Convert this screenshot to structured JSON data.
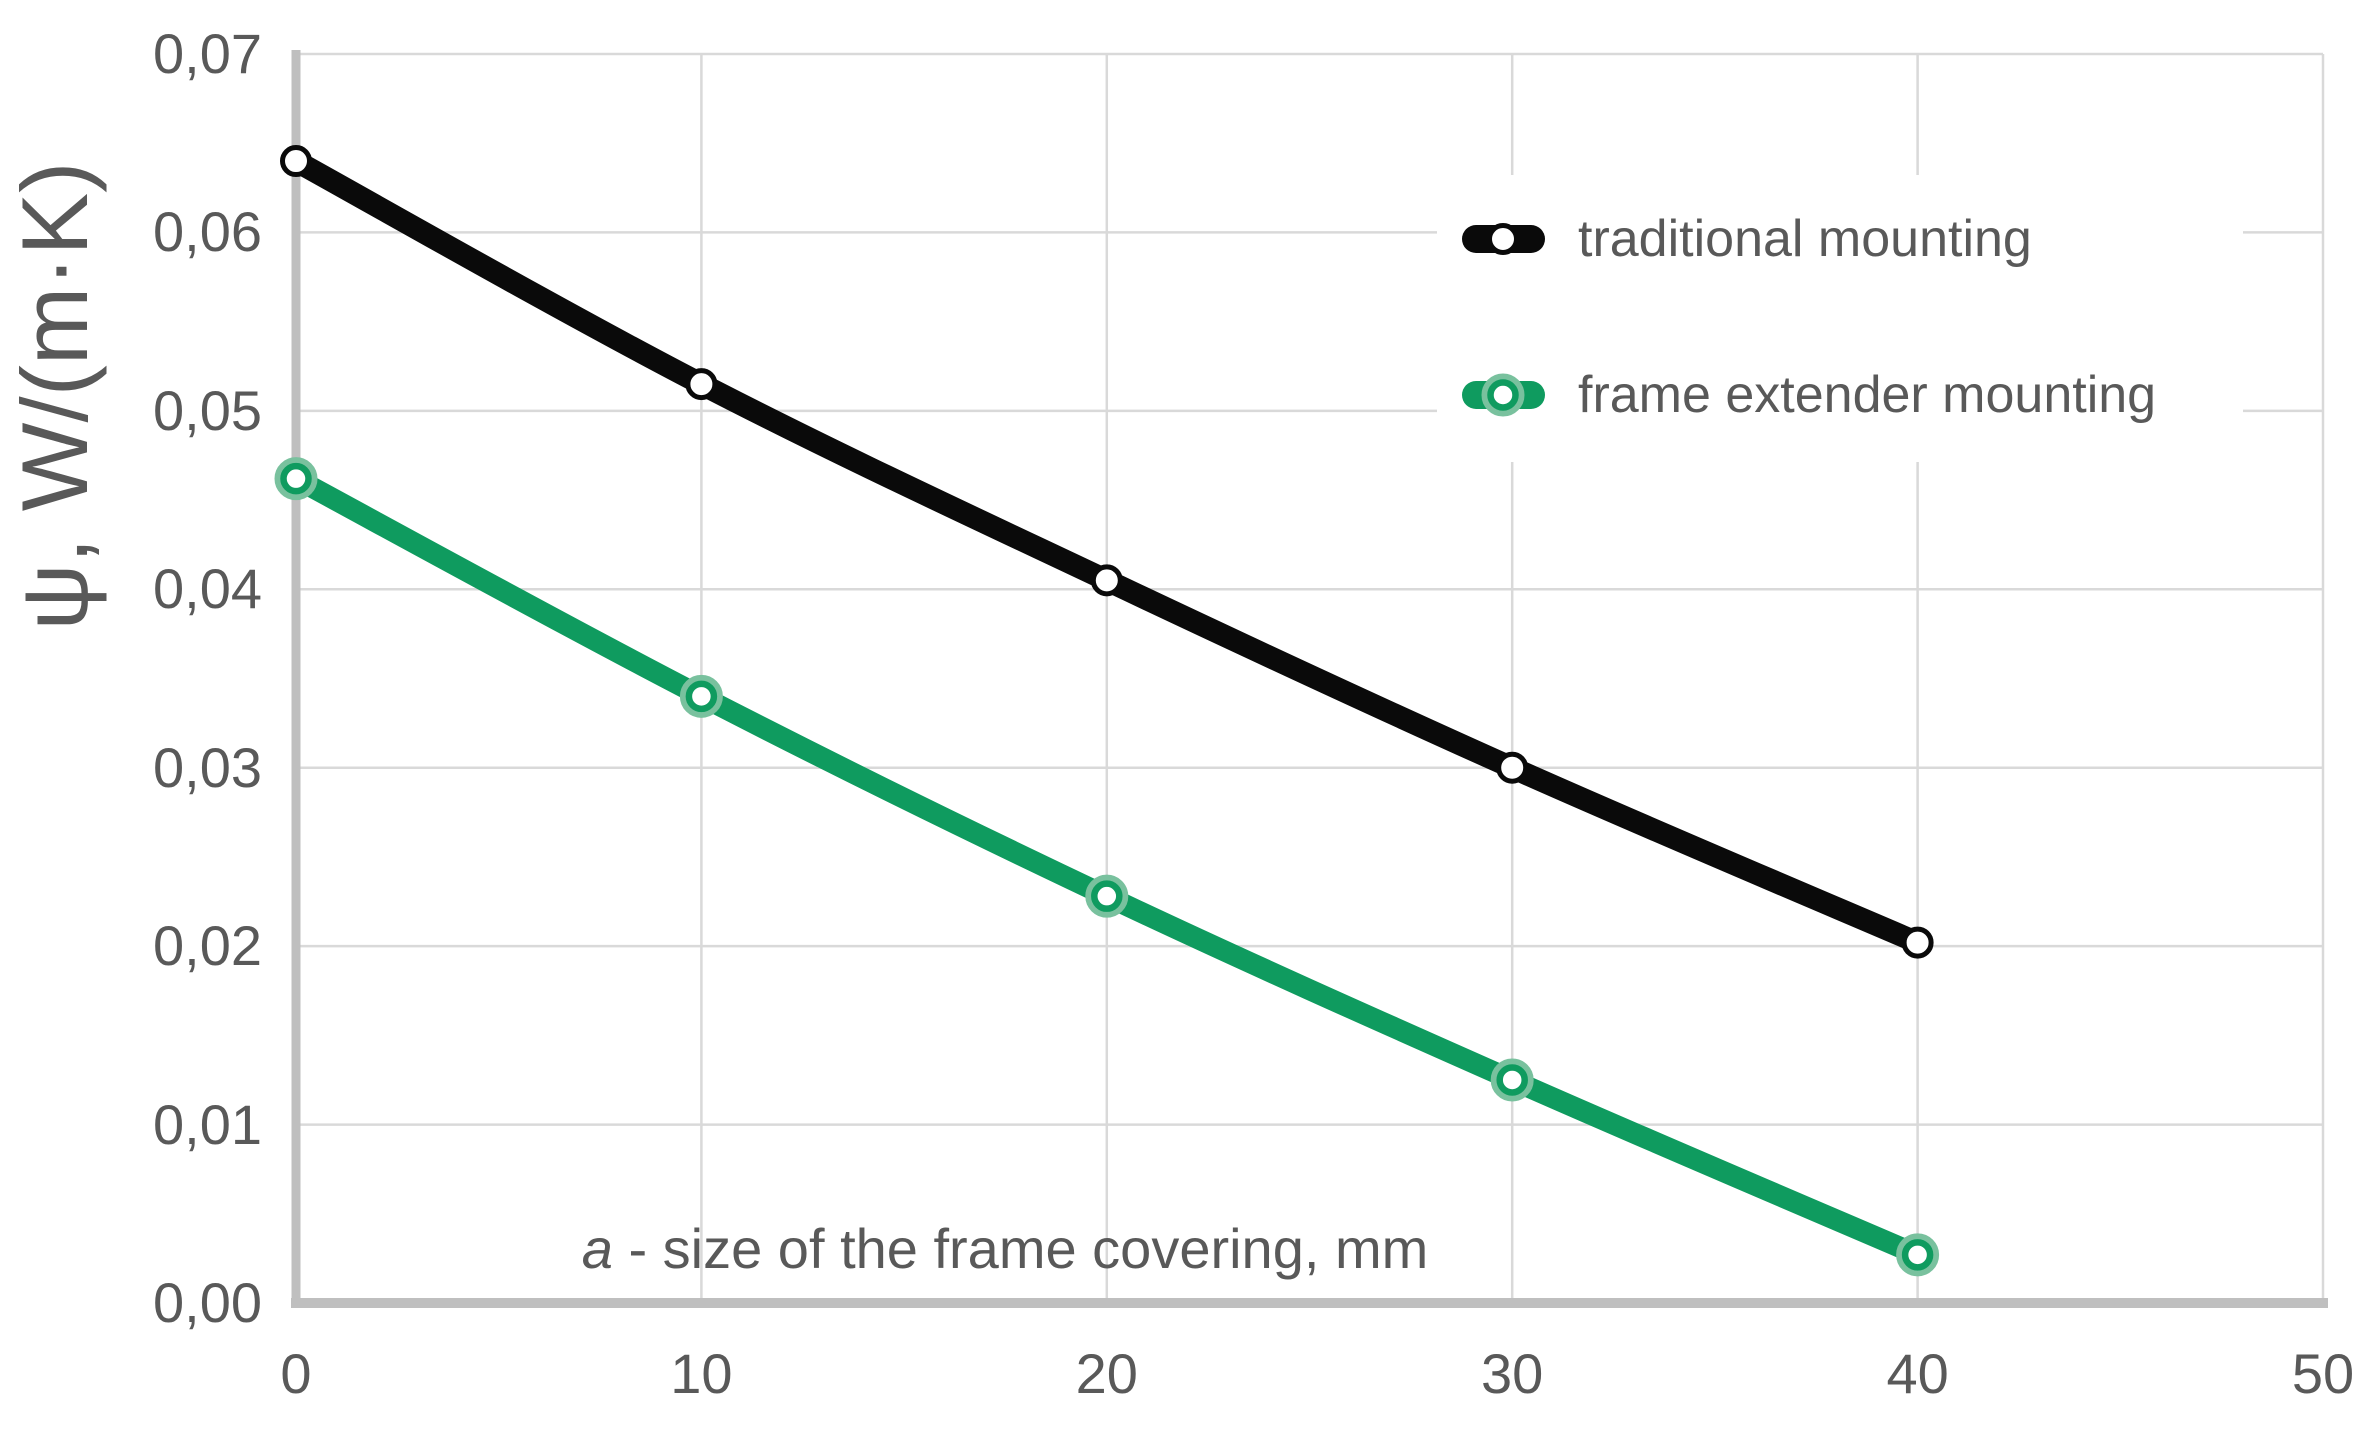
{
  "chart_data": {
    "type": "line",
    "title": "",
    "xlabel": "a - size of the frame covering, mm",
    "xlabel_italic": "a",
    "xlabel_rest": " - size of the frame covering, mm",
    "ylabel": "ψ, W/(m·K)",
    "xlim": [
      0,
      50
    ],
    "ylim": [
      0.0,
      0.07
    ],
    "grid": true,
    "decimal_separator": ",",
    "legend_position": "inside upper right",
    "x": [
      0,
      10,
      20,
      30,
      40
    ],
    "series": [
      {
        "name": "traditional mounting",
        "color": "#0a0a0a",
        "marker": "circle-white-fill",
        "values": [
          0.064,
          0.0515,
          0.0405,
          0.03,
          0.0202
        ]
      },
      {
        "name": "frame extender mounting",
        "color": "#0f9b5f",
        "marker": "circle-white-fill-halo",
        "values": [
          0.0462,
          0.034,
          0.0228,
          0.0125,
          0.0027
        ]
      }
    ],
    "x_ticks": [
      "0",
      "10",
      "20",
      "30",
      "40",
      "50"
    ],
    "x_tick_values": [
      0,
      10,
      20,
      30,
      40,
      50
    ],
    "y_ticks": [
      "0,00",
      "0,01",
      "0,02",
      "0,03",
      "0,04",
      "0,05",
      "0,06",
      "0,07"
    ],
    "y_tick_values": [
      0.0,
      0.01,
      0.02,
      0.03,
      0.04,
      0.05,
      0.06,
      0.07
    ]
  },
  "colors": {
    "background": "#ffffff",
    "gridline": "#d9d9d9",
    "axis_line": "#bfbfbf",
    "text": "#595959",
    "series_black": "#0a0a0a",
    "series_green": "#0f9b5f",
    "green_marker_halo": "#79c19e",
    "marker_fill": "#ffffff"
  }
}
